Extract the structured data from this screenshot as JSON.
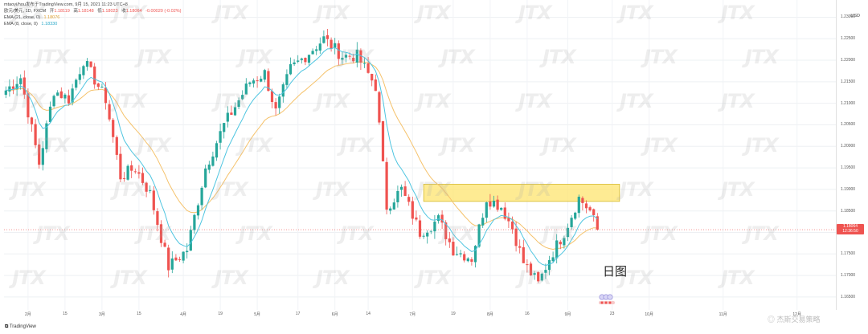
{
  "header": {
    "ticker": "欧元/美元, 1D, FXCM",
    "open_label": "开",
    "open": "1.18119",
    "high_label": "高",
    "high": "1.18148",
    "low_label": "低",
    "low": "1.18023",
    "close_label": "收",
    "close": "1.18064",
    "change": "-0.00020 (-0.02%)",
    "published": "mtaoyi/hou发布于TradingView.com, 9月 15, 2021 11:23 UTC+8",
    "ema1_label": "EMA (21, close, 0)",
    "ema1_value": "1.18076",
    "ema2_label": "EMA (8, close, 0)",
    "ema2_value": "1.18330"
  },
  "currency": "USD",
  "price_badge": {
    "price": "1.18064",
    "countdown": "12:36:50"
  },
  "annotation": "日图",
  "brand": "TradingView",
  "watermark_text": "杰斯交易策略",
  "watermark_logo": "JTX",
  "colors": {
    "up": "#26a69a",
    "down": "#ef5350",
    "ema21": "#f5c26b",
    "ema8": "#4ec5e0",
    "zone": "#fde46f",
    "zone_border": "#c9a800"
  },
  "chart_data": {
    "type": "candlestick",
    "symbol": "欧元/美元",
    "interval": "1D",
    "y_ticks": [
      "1.23000",
      "1.22500",
      "1.22000",
      "1.21500",
      "1.21000",
      "1.20500",
      "1.20000",
      "1.19500",
      "1.19000",
      "1.18500",
      "1.18000",
      "1.17500",
      "1.17000",
      "1.16500"
    ],
    "ylim": [
      1.162,
      1.234
    ],
    "x_ticks": [
      {
        "label": "2月",
        "i": 6
      },
      {
        "label": "15",
        "i": 16
      },
      {
        "label": "3月",
        "i": 26
      },
      {
        "label": "15",
        "i": 36
      },
      {
        "label": "4月",
        "i": 48
      },
      {
        "label": "19",
        "i": 58
      },
      {
        "label": "5月",
        "i": 68
      },
      {
        "label": "17",
        "i": 79
      },
      {
        "label": "6月",
        "i": 89
      },
      {
        "label": "14",
        "i": 98
      },
      {
        "label": "7月",
        "i": 110
      },
      {
        "label": "19",
        "i": 121
      },
      {
        "label": "8月",
        "i": 131
      },
      {
        "label": "16",
        "i": 141
      },
      {
        "label": "9月",
        "i": 152
      },
      {
        "label": "23",
        "i": 164
      },
      {
        "label": "10月",
        "i": 174
      },
      {
        "label": "11月",
        "i": 194
      },
      {
        "label": "12月",
        "i": 214
      }
    ],
    "x_span": 225,
    "ema_periods": [
      21,
      8
    ],
    "resistance_zone": {
      "low": 1.1872,
      "high": 1.1912,
      "from_index": 113,
      "to_index": 166
    },
    "anchors": [
      [
        0,
        1.213
      ],
      [
        4,
        1.216
      ],
      [
        9,
        1.196
      ],
      [
        13,
        1.213
      ],
      [
        17,
        1.211
      ],
      [
        21,
        1.22
      ],
      [
        27,
        1.211
      ],
      [
        31,
        1.193
      ],
      [
        35,
        1.195
      ],
      [
        39,
        1.189
      ],
      [
        44,
        1.172
      ],
      [
        49,
        1.176
      ],
      [
        54,
        1.195
      ],
      [
        59,
        1.205
      ],
      [
        66,
        1.215
      ],
      [
        70,
        1.217
      ],
      [
        73,
        1.208
      ],
      [
        77,
        1.218
      ],
      [
        81,
        1.221
      ],
      [
        86,
        1.225
      ],
      [
        91,
        1.221
      ],
      [
        95,
        1.221
      ],
      [
        100,
        1.214
      ],
      [
        103,
        1.186
      ],
      [
        107,
        1.19
      ],
      [
        112,
        1.18
      ],
      [
        117,
        1.183
      ],
      [
        121,
        1.176
      ],
      [
        126,
        1.174
      ],
      [
        130,
        1.188
      ],
      [
        134,
        1.186
      ],
      [
        137,
        1.181
      ],
      [
        140,
        1.173
      ],
      [
        144,
        1.168
      ],
      [
        147,
        1.174
      ],
      [
        151,
        1.18
      ],
      [
        155,
        1.188
      ],
      [
        158,
        1.185
      ],
      [
        160,
        1.1806
      ]
    ],
    "last_price": 1.18064
  }
}
